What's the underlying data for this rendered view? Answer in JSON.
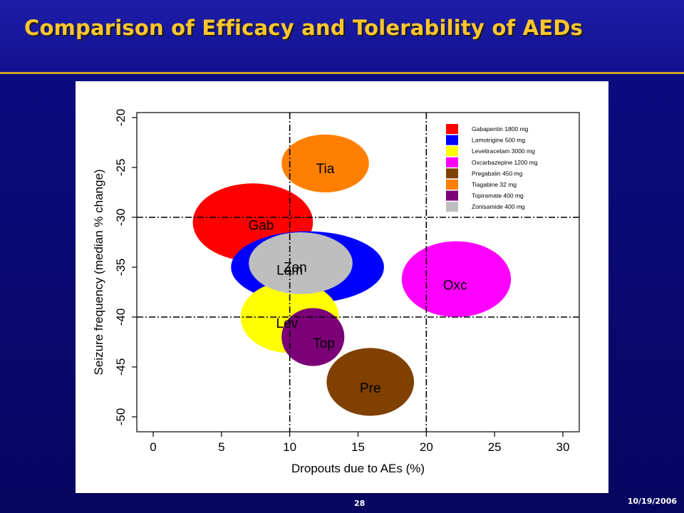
{
  "slide": {
    "title": "Comparison of Efficacy and Tolerability of AEDs",
    "page_number": "28",
    "date": "10/19/2006"
  },
  "chart_data": {
    "type": "scatter",
    "title": "",
    "xlabel": "Dropouts due to AEs (%)",
    "ylabel": "Seizure frequency (median % change)",
    "xlim": [
      -1.2,
      31.2
    ],
    "ylim": [
      -51.5,
      -19.5
    ],
    "xticks": [
      0,
      5,
      10,
      15,
      20,
      25,
      30
    ],
    "yticks": [
      -20,
      -25,
      -30,
      -35,
      -40,
      -45,
      -50
    ],
    "reference_lines": {
      "x": [
        10,
        20
      ],
      "y": [
        -30,
        -40
      ]
    },
    "legend_position": "top-right",
    "series": [
      {
        "name": "Gabapentin 1800 mg",
        "label": "Gab",
        "color": "#ff0000",
        "x": 7.3,
        "y": -30.5,
        "rx": 4.4,
        "ry": 3.9
      },
      {
        "name": "Tiagabine 32 mg",
        "label": "Tia",
        "color": "#ff7f00",
        "x": 12.6,
        "y": -24.6,
        "rx": 3.2,
        "ry": 2.9
      },
      {
        "name": "Lamotrigine 500 mg",
        "label": "Lam",
        "color": "#0000ff",
        "x": 11.3,
        "y": -35.0,
        "rx": 5.6,
        "ry": 3.6
      },
      {
        "name": "Levetiracetam 3000 mg",
        "label": "Lev",
        "color": "#ffff00",
        "x": 10.0,
        "y": -40.0,
        "rx": 3.6,
        "ry": 3.6
      },
      {
        "name": "Topiramate 400 mg",
        "label": "Top",
        "color": "#7b0078",
        "x": 11.7,
        "y": -42.0,
        "rx": 2.3,
        "ry": 2.9
      },
      {
        "name": "Pregabalin 450 mg",
        "label": "Pre",
        "color": "#7f4000",
        "x": 15.9,
        "y": -46.5,
        "rx": 3.2,
        "ry": 3.4
      },
      {
        "name": "Oxcarbazepine 1200 mg",
        "label": "Oxc",
        "color": "#ff00ff",
        "x": 22.2,
        "y": -36.2,
        "rx": 4.0,
        "ry": 3.8
      },
      {
        "name": "Zonisamide 400 mg",
        "label": "Zon",
        "color": "#bebebe",
        "x": 10.8,
        "y": -34.6,
        "rx": 3.8,
        "ry": 3.1
      }
    ],
    "draw_order": [
      "Gab",
      "Tia",
      "Lam",
      "Lev",
      "Top",
      "Pre",
      "Oxc",
      "Zon"
    ],
    "legend_order": [
      "Gabapentin 1800 mg",
      "Lamotrigine 500 mg",
      "Levetiracetam 3000 mg",
      "Oxcarbazepine 1200 mg",
      "Pregabalin 450 mg",
      "Tiagabine 32 mg",
      "Topiramate 400 mg",
      "Zonisamide 400 mg"
    ]
  }
}
